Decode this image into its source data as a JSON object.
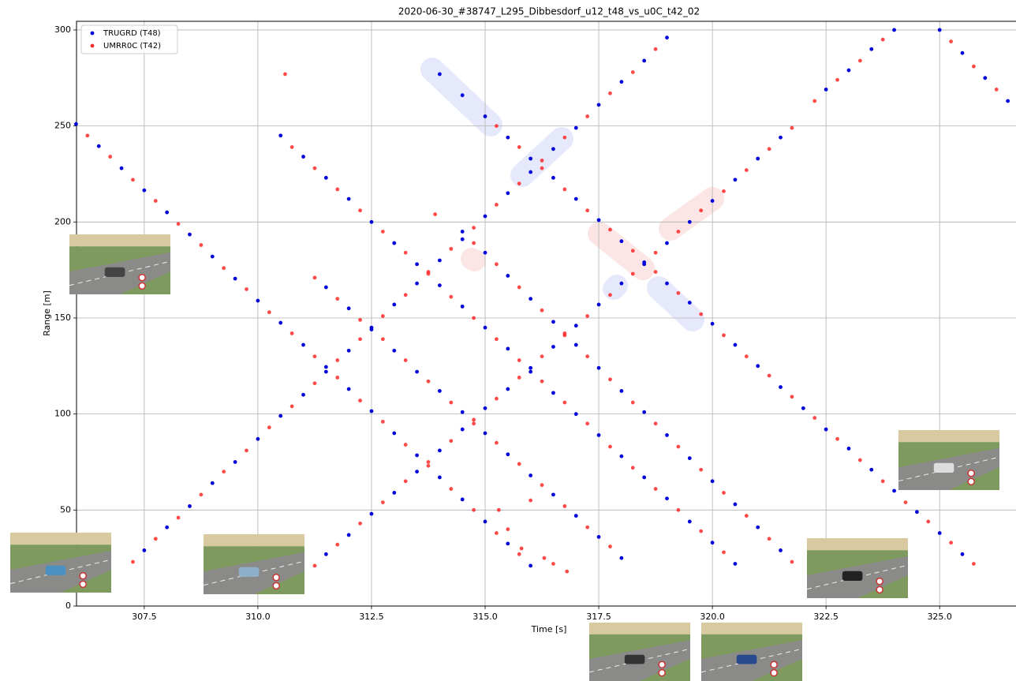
{
  "chart_data": {
    "type": "scatter",
    "title": "2020-06-30_#38747_L295_Dibbesdorf_u12_t48_vs_u0C_t42_02",
    "xlabel": "Time [s]",
    "ylabel": "Range [m]",
    "xlim": [
      306.01,
      326.68
    ],
    "ylim": [
      0,
      304.5
    ],
    "xticks": [
      307.5,
      {
        "value": 310,
        "label": "310.0"
      },
      312.5,
      {
        "value": 315,
        "label": "315.0"
      },
      317.5,
      {
        "value": 320,
        "label": "320.0"
      },
      322.5,
      {
        "value": 325,
        "label": "325.0"
      }
    ],
    "yticks": [
      0,
      50,
      100,
      150,
      200,
      250,
      300
    ],
    "grid": true,
    "legend": "upper left",
    "series": [
      {
        "name": "TRUGRD (T48)",
        "color": "#0000dd",
        "x": [
          306,
          306.5,
          307,
          307.5,
          308,
          308.5,
          309,
          309.5,
          310,
          310.5,
          311,
          311.5,
          312,
          312.5,
          313,
          313.5,
          314,
          314.5,
          315,
          315.5,
          316,
          307.5,
          308,
          308.5,
          309,
          309.5,
          310,
          310.5,
          311,
          311.5,
          312,
          312.5,
          313,
          313.5,
          314,
          314.5,
          315,
          315.5,
          316,
          316.5,
          317,
          317.5,
          318,
          318.5,
          319,
          310.5,
          311,
          311.5,
          312,
          312.5,
          313,
          313.5,
          314,
          314.5,
          315,
          315.5,
          316,
          316.5,
          317,
          317.5,
          318,
          318.5,
          319,
          319.5,
          320,
          320.5,
          311.5,
          312,
          312.5,
          313,
          313.5,
          314,
          314.5,
          315,
          315.5,
          316,
          316.5,
          317,
          317.5,
          318,
          311.5,
          312,
          312.5,
          313,
          313.5,
          314,
          314.5,
          315,
          315.5,
          316,
          316.5,
          317,
          317.5,
          318,
          318.5,
          319,
          319.5,
          320,
          320.5,
          321,
          321.5,
          314,
          314.5,
          315,
          315.5,
          316,
          316.5,
          317,
          317.5,
          318,
          318.5,
          319,
          319.5,
          320,
          320.5,
          321,
          321.5,
          322,
          322.5,
          323,
          323.5,
          324,
          324.5,
          325,
          325.5,
          314.5,
          315,
          315.5,
          316,
          316.5,
          317,
          317.5,
          318,
          318.5,
          319,
          319.5,
          320,
          320.5,
          321,
          321.5,
          322.5,
          323,
          323.5,
          324,
          325,
          325.5,
          326,
          326.5
        ],
        "values": [
          251,
          239.5,
          228,
          216.5,
          205,
          193.5,
          182,
          170.5,
          159,
          147.5,
          136,
          124.5,
          113,
          101.5,
          90,
          78.5,
          67,
          55.5,
          44,
          32.5,
          21,
          29,
          41,
          52,
          64,
          75,
          87,
          99,
          110,
          122,
          133,
          145,
          157,
          168,
          180,
          191,
          203,
          215,
          226,
          238,
          249,
          261,
          273,
          284,
          296,
          245,
          234,
          223,
          212,
          200,
          189,
          178,
          167,
          156,
          145,
          134,
          122,
          111,
          100,
          89,
          78,
          67,
          56,
          44,
          33,
          22,
          166,
          155,
          144,
          133,
          122,
          112,
          101,
          90,
          79,
          68,
          58,
          47,
          36,
          25,
          27,
          37,
          48,
          59,
          70,
          81,
          92,
          103,
          113,
          124,
          135,
          146,
          157,
          168,
          178,
          189,
          200,
          211,
          222,
          233,
          244,
          277,
          266,
          255,
          244,
          233,
          223,
          212,
          201,
          190,
          179,
          168,
          158,
          147,
          136,
          125,
          114,
          103,
          92,
          82,
          71,
          60,
          49,
          38,
          27,
          195,
          184,
          172,
          160,
          148,
          136,
          124,
          112,
          101,
          89,
          77,
          65,
          53,
          41,
          29,
          269,
          279,
          290,
          300,
          300,
          288,
          275,
          263
        ]
      },
      {
        "name": "UMRR0C (T42)",
        "color": "#ff2a2a",
        "x": [
          306.25,
          306.75,
          307.25,
          307.75,
          308.25,
          308.75,
          309.25,
          309.75,
          310.25,
          310.75,
          311.25,
          311.75,
          312.25,
          312.75,
          313.25,
          313.75,
          314.25,
          314.75,
          315.25,
          315.75,
          307.25,
          307.75,
          308.25,
          308.75,
          309.25,
          309.75,
          310.25,
          310.75,
          311.25,
          311.75,
          312.25,
          312.75,
          313.25,
          313.75,
          314.25,
          314.75,
          315.25,
          315.75,
          316.25,
          316.75,
          317.25,
          317.75,
          318.25,
          318.75,
          310.75,
          311.25,
          311.75,
          312.25,
          312.75,
          313.25,
          313.75,
          314.25,
          314.75,
          315.25,
          315.75,
          316.25,
          316.75,
          317.25,
          317.75,
          318.25,
          318.75,
          319.25,
          319.75,
          320.25,
          311.25,
          311.75,
          312.25,
          312.75,
          313.25,
          313.75,
          314.25,
          314.75,
          315.25,
          315.75,
          316.25,
          316.75,
          317.25,
          317.75,
          311.25,
          311.75,
          312.25,
          312.75,
          313.25,
          313.75,
          314.25,
          314.75,
          315.25,
          315.75,
          316.25,
          316.75,
          317.25,
          317.75,
          318.25,
          318.75,
          319.25,
          319.75,
          320.25,
          320.75,
          321.25,
          321.75,
          315.25,
          315.75,
          316.25,
          316.75,
          317.25,
          317.75,
          318.25,
          318.75,
          319.25,
          319.75,
          320.25,
          320.75,
          321.25,
          321.75,
          322.25,
          322.75,
          323.25,
          323.75,
          324.25,
          324.75,
          325.25,
          325.75,
          314.75,
          315.25,
          315.75,
          316.25,
          316.75,
          317.25,
          317.75,
          318.25,
          318.75,
          319.25,
          319.75,
          320.25,
          320.75,
          321.25,
          321.75,
          322.25,
          322.75,
          323.25,
          323.75,
          325.25,
          325.75,
          326.25,
          310.6,
          313.9,
          315.3,
          315.5,
          315.8,
          316,
          316.3,
          316.5,
          316.8
        ],
        "values": [
          245,
          234,
          222,
          211,
          199,
          188,
          176,
          165,
          153,
          142,
          130,
          119,
          107,
          96,
          84,
          73,
          61,
          50,
          38,
          27,
          23,
          35,
          46,
          58,
          70,
          81,
          93,
          104,
          116,
          128,
          139,
          151,
          162,
          174,
          186,
          197,
          209,
          220,
          232,
          244,
          255,
          267,
          278,
          290,
          239,
          228,
          217,
          206,
          195,
          184,
          173,
          161,
          150,
          139,
          128,
          117,
          106,
          95,
          83,
          72,
          61,
          50,
          39,
          28,
          171,
          160,
          149,
          139,
          128,
          117,
          106,
          95,
          85,
          74,
          63,
          52,
          41,
          31,
          21,
          32,
          43,
          54,
          65,
          75,
          86,
          97,
          108,
          119,
          130,
          141,
          151,
          162,
          173,
          184,
          195,
          206,
          216,
          227,
          238,
          249,
          250,
          239,
          228,
          217,
          206,
          196,
          185,
          174,
          163,
          152,
          141,
          130,
          120,
          109,
          98,
          87,
          76,
          65,
          54,
          44,
          33,
          22,
          189,
          178,
          166,
          154,
          142,
          130,
          118,
          106,
          95,
          83,
          71,
          59,
          47,
          35,
          23,
          263,
          274,
          284,
          295,
          294,
          281,
          269,
          277,
          204,
          50,
          40,
          30,
          55,
          25,
          22,
          18
        ]
      }
    ]
  }
}
